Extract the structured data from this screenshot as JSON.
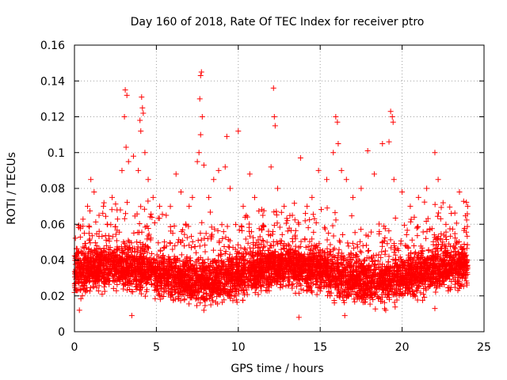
{
  "chart_data": {
    "type": "scatter",
    "title": "Day 160 of 2018, Rate Of TEC Index for receiver ptro",
    "xlabel": "GPS time / hours",
    "ylabel": "ROTI / TECUs",
    "xlim": [
      0,
      25
    ],
    "ylim": [
      0,
      0.16
    ],
    "x_ticks": [
      0,
      5,
      10,
      15,
      20,
      25
    ],
    "x_tick_labels": [
      "0",
      "5",
      "10",
      "15",
      "20",
      "25"
    ],
    "y_ticks": [
      0,
      0.02,
      0.04,
      0.06,
      0.08,
      0.1,
      0.12,
      0.14,
      0.16
    ],
    "y_tick_labels": [
      "0",
      "0.02",
      "0.04",
      "0.06",
      "0.08",
      "0.1",
      "0.12",
      "0.14",
      "0.16"
    ],
    "grid": true,
    "marker": "+",
    "color": "#ff0000",
    "series": [
      {
        "name": "ROTI",
        "data_range_hours": [
          0,
          24
        ],
        "typical_range": [
          0.015,
          0.05
        ],
        "points": [
          [
            0.2,
            0.032
          ],
          [
            0.4,
            0.045
          ],
          [
            0.6,
            0.055
          ],
          [
            0.8,
            0.07
          ],
          [
            1.0,
            0.085
          ],
          [
            1.2,
            0.078
          ],
          [
            1.5,
            0.065
          ],
          [
            1.8,
            0.072
          ],
          [
            2.0,
            0.06
          ],
          [
            2.3,
            0.075
          ],
          [
            2.6,
            0.068
          ],
          [
            2.9,
            0.09
          ],
          [
            3.1,
            0.135
          ],
          [
            3.2,
            0.132
          ],
          [
            3.05,
            0.12
          ],
          [
            3.15,
            0.103
          ],
          [
            3.3,
            0.095
          ],
          [
            3.6,
            0.098
          ],
          [
            3.9,
            0.09
          ],
          [
            4.0,
            0.118
          ],
          [
            4.1,
            0.131
          ],
          [
            4.15,
            0.125
          ],
          [
            4.2,
            0.122
          ],
          [
            4.05,
            0.112
          ],
          [
            4.3,
            0.1
          ],
          [
            4.5,
            0.085
          ],
          [
            4.8,
            0.075
          ],
          [
            5.2,
            0.07
          ],
          [
            5.6,
            0.065
          ],
          [
            6.0,
            0.055
          ],
          [
            6.2,
            0.088
          ],
          [
            6.5,
            0.078
          ],
          [
            6.8,
            0.06
          ],
          [
            7.0,
            0.07
          ],
          [
            7.2,
            0.075
          ],
          [
            7.5,
            0.095
          ],
          [
            7.7,
            0.143
          ],
          [
            7.75,
            0.145
          ],
          [
            7.65,
            0.13
          ],
          [
            7.8,
            0.12
          ],
          [
            7.7,
            0.11
          ],
          [
            7.6,
            0.1
          ],
          [
            7.9,
            0.093
          ],
          [
            8.2,
            0.075
          ],
          [
            8.5,
            0.085
          ],
          [
            8.8,
            0.09
          ],
          [
            9.2,
            0.092
          ],
          [
            9.3,
            0.109
          ],
          [
            9.5,
            0.08
          ],
          [
            10.0,
            0.112
          ],
          [
            10.3,
            0.07
          ],
          [
            10.7,
            0.088
          ],
          [
            11.0,
            0.075
          ],
          [
            11.5,
            0.065
          ],
          [
            12.0,
            0.092
          ],
          [
            12.15,
            0.136
          ],
          [
            12.2,
            0.12
          ],
          [
            12.25,
            0.115
          ],
          [
            12.4,
            0.08
          ],
          [
            12.8,
            0.07
          ],
          [
            13.3,
            0.065
          ],
          [
            13.8,
            0.097
          ],
          [
            14.2,
            0.07
          ],
          [
            14.5,
            0.075
          ],
          [
            14.9,
            0.09
          ],
          [
            15.4,
            0.085
          ],
          [
            15.8,
            0.1
          ],
          [
            15.95,
            0.12
          ],
          [
            16.05,
            0.117
          ],
          [
            16.1,
            0.105
          ],
          [
            16.3,
            0.09
          ],
          [
            16.6,
            0.085
          ],
          [
            17.0,
            0.075
          ],
          [
            17.5,
            0.08
          ],
          [
            17.9,
            0.101
          ],
          [
            18.3,
            0.088
          ],
          [
            18.8,
            0.105
          ],
          [
            19.3,
            0.123
          ],
          [
            19.4,
            0.12
          ],
          [
            19.45,
            0.117
          ],
          [
            19.2,
            0.106
          ],
          [
            19.5,
            0.085
          ],
          [
            20.0,
            0.078
          ],
          [
            20.5,
            0.07
          ],
          [
            21.0,
            0.075
          ],
          [
            21.5,
            0.08
          ],
          [
            22.0,
            0.1
          ],
          [
            22.2,
            0.085
          ],
          [
            22.5,
            0.072
          ],
          [
            23.0,
            0.066
          ],
          [
            23.5,
            0.078
          ],
          [
            24.0,
            0.07
          ],
          [
            0.3,
            0.012
          ],
          [
            3.5,
            0.009
          ],
          [
            7.9,
            0.012
          ],
          [
            13.7,
            0.008
          ],
          [
            16.5,
            0.009
          ],
          [
            19.0,
            0.012
          ],
          [
            22.0,
            0.013
          ]
        ]
      }
    ]
  }
}
